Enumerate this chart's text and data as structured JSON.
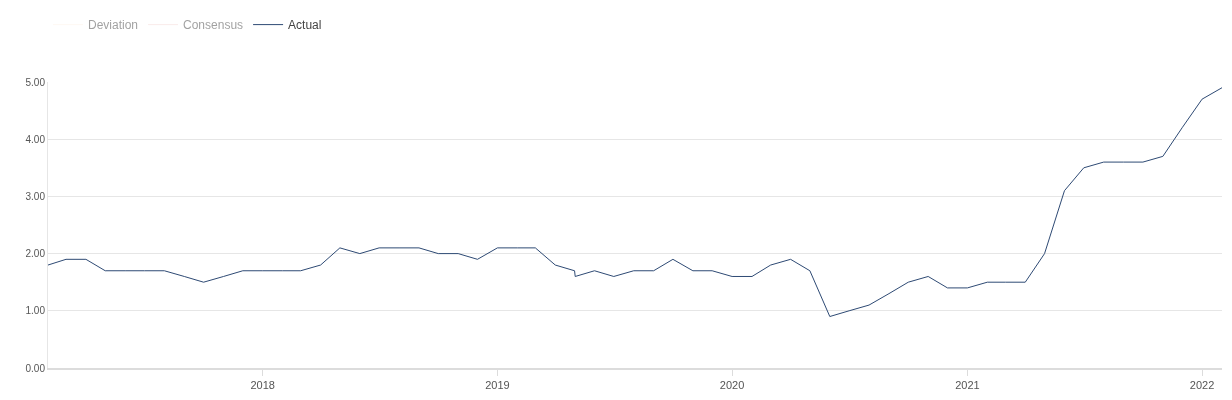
{
  "chart_data": {
    "type": "line",
    "x": [
      "2017-02-01",
      "2017-03-01",
      "2017-04-01",
      "2017-05-01",
      "2017-06-01",
      "2017-07-01",
      "2017-08-01",
      "2017-09-01",
      "2017-10-01",
      "2017-11-01",
      "2017-12-01",
      "2018-01-01",
      "2018-02-01",
      "2018-03-01",
      "2018-04-01",
      "2018-05-01",
      "2018-06-01",
      "2018-07-01",
      "2018-08-01",
      "2018-09-01",
      "2018-10-01",
      "2018-11-01",
      "2018-12-01",
      "2019-01-01",
      "2019-02-01",
      "2019-03-01",
      "2019-04-01",
      "2019-05-01",
      "2019-05-02",
      "2019-06-01",
      "2019-07-01",
      "2019-08-01",
      "2019-09-01",
      "2019-10-01",
      "2019-11-01",
      "2019-12-01",
      "2020-01-01",
      "2020-02-01",
      "2020-03-01",
      "2020-04-01",
      "2020-05-01",
      "2020-06-01",
      "2020-07-01",
      "2020-08-01",
      "2020-09-01",
      "2020-10-01",
      "2020-11-01",
      "2020-12-01",
      "2021-01-01",
      "2021-02-01",
      "2021-03-01",
      "2021-04-01",
      "2021-05-01",
      "2021-06-01",
      "2021-07-01",
      "2021-08-01",
      "2021-09-01",
      "2021-10-01",
      "2021-11-01",
      "2021-12-01",
      "2022-01-01",
      "2022-02-01"
    ],
    "series": [
      {
        "name": "Deviation",
        "color": "#fdf1e6",
        "values": [
          null,
          null,
          null,
          null,
          null,
          null,
          null,
          null,
          null,
          null,
          null,
          null,
          null,
          null,
          null,
          null,
          null,
          null,
          null,
          null,
          null,
          null,
          null,
          null,
          null,
          null,
          null,
          null,
          null,
          null,
          null,
          null,
          null,
          null,
          null,
          null,
          null,
          null,
          null,
          null,
          null,
          null,
          null,
          null,
          null,
          null,
          null,
          null,
          null,
          null,
          null,
          null,
          null,
          null,
          null,
          null,
          null,
          null,
          null,
          null,
          null,
          null
        ]
      },
      {
        "name": "Consensus",
        "color": "#f3d7d6",
        "values": [
          null,
          null,
          null,
          null,
          null,
          null,
          null,
          null,
          null,
          null,
          null,
          null,
          null,
          null,
          null,
          null,
          null,
          null,
          null,
          null,
          null,
          null,
          null,
          null,
          null,
          null,
          null,
          null,
          null,
          null,
          null,
          null,
          null,
          null,
          null,
          null,
          null,
          null,
          null,
          null,
          null,
          null,
          null,
          null,
          null,
          null,
          null,
          null,
          null,
          null,
          null,
          null,
          null,
          null,
          null,
          null,
          null,
          null,
          null,
          null,
          null,
          null
        ]
      },
      {
        "name": "Actual",
        "color": "#2e4a74",
        "values": [
          1.8,
          1.9,
          1.9,
          1.7,
          1.7,
          1.7,
          1.7,
          1.6,
          1.5,
          1.6,
          1.7,
          1.7,
          1.7,
          1.7,
          1.8,
          2.1,
          2.0,
          2.1,
          2.1,
          2.1,
          2.0,
          2.0,
          1.9,
          2.1,
          2.1,
          2.1,
          1.8,
          1.7,
          1.6,
          1.7,
          1.6,
          1.7,
          1.7,
          1.9,
          1.7,
          1.7,
          1.6,
          1.6,
          1.8,
          1.9,
          1.7,
          0.9,
          1.0,
          1.1,
          1.3,
          1.5,
          1.6,
          1.4,
          1.4,
          1.5,
          1.5,
          1.5,
          2.0,
          3.1,
          3.5,
          3.6,
          3.6,
          3.6,
          3.7,
          4.2,
          4.7,
          4.9
        ]
      }
    ],
    "xlim": [
      "2017-02-01",
      "2022-02-01"
    ],
    "xticks": [
      {
        "value": "2018-01-01",
        "label": "2018"
      },
      {
        "value": "2019-01-01",
        "label": "2019"
      },
      {
        "value": "2020-01-01",
        "label": "2020"
      },
      {
        "value": "2021-01-01",
        "label": "2021"
      },
      {
        "value": "2022-01-01",
        "label": "2022"
      }
    ],
    "ylim": [
      0,
      5
    ],
    "yticks": [
      {
        "value": 0,
        "label": "0.00"
      },
      {
        "value": 1,
        "label": "1.00"
      },
      {
        "value": 2,
        "label": "2.00"
      },
      {
        "value": 3,
        "label": "3.00"
      },
      {
        "value": 4,
        "label": "4.00"
      },
      {
        "value": 5,
        "label": "5.00"
      }
    ],
    "grid": "y",
    "legend": "top left",
    "marker": "none",
    "line_style": "solid"
  }
}
